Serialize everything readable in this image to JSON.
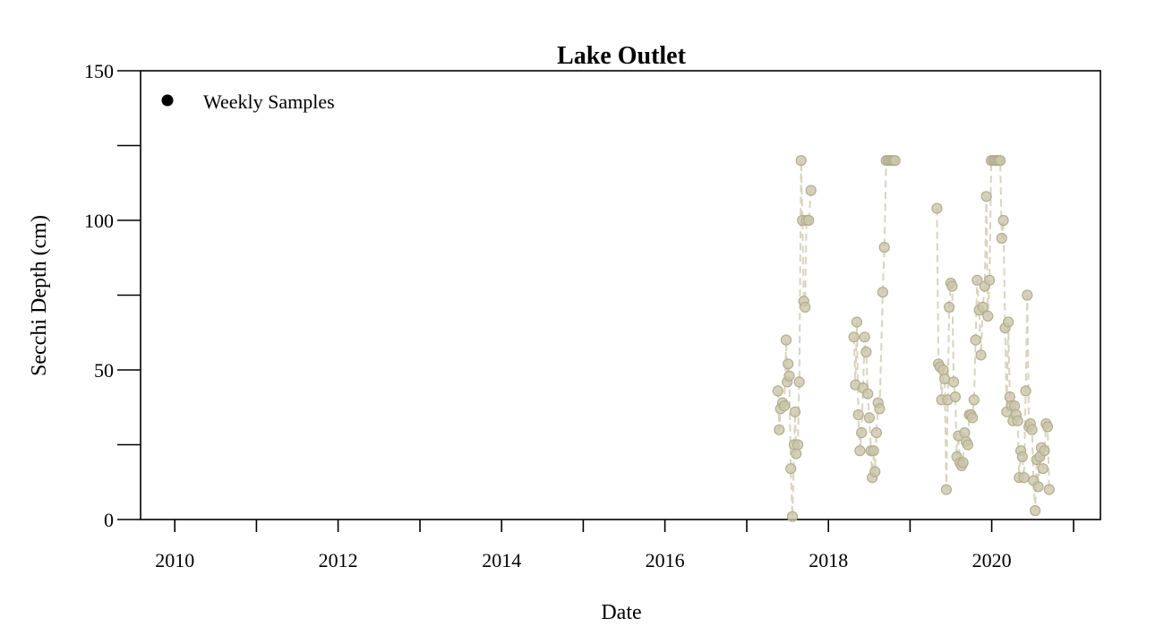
{
  "chart_data": {
    "type": "scatter",
    "title": "Lake Outlet",
    "xlabel": "Date",
    "ylabel": "Secchi Depth (cm)",
    "x_type": "date",
    "xlim": [
      "2009-08-01",
      "2021-05-01"
    ],
    "ylim": [
      0,
      150
    ],
    "x_ticks": [
      "2010",
      "2011",
      "2012",
      "2013",
      "2014",
      "2015",
      "2016",
      "2017",
      "2018",
      "2019",
      "2020",
      "2021"
    ],
    "x_tick_labels": [
      "2010",
      "",
      "2012",
      "",
      "2014",
      "",
      "2016",
      "",
      "2018",
      "",
      "2020",
      ""
    ],
    "y_ticks": [
      0,
      25,
      50,
      75,
      100,
      125,
      150
    ],
    "y_tick_labels": [
      "0",
      "",
      "50",
      "",
      "100",
      "",
      "150"
    ],
    "grid": false,
    "legend_position": "top-left",
    "legend_marker_color": "#000000",
    "point_color": "#cbc6aa",
    "point_stroke": "#b3ad8f",
    "line_color": "#cbc6aa",
    "series": [
      {
        "name": "Weekly Samples",
        "points": [
          [
            "2017-05-20",
            43
          ],
          [
            "2017-05-26",
            30
          ],
          [
            "2017-06-01",
            37
          ],
          [
            "2017-06-10",
            39
          ],
          [
            "2017-06-18",
            38
          ],
          [
            "2017-06-26",
            60
          ],
          [
            "2017-07-01",
            46
          ],
          [
            "2017-07-05",
            52
          ],
          [
            "2017-07-10",
            48
          ],
          [
            "2017-07-17",
            17
          ],
          [
            "2017-07-24",
            1
          ],
          [
            "2017-08-01",
            25
          ],
          [
            "2017-08-05",
            36
          ],
          [
            "2017-08-10",
            22
          ],
          [
            "2017-08-17",
            25
          ],
          [
            "2017-08-24",
            46
          ],
          [
            "2017-09-01",
            120
          ],
          [
            "2017-09-07",
            100
          ],
          [
            "2017-09-13",
            73
          ],
          [
            "2017-09-19",
            71
          ],
          [
            "2017-09-25",
            100
          ],
          [
            "2017-10-05",
            100
          ],
          [
            "2017-10-15",
            110
          ],
          [
            "2018-04-25",
            61
          ],
          [
            "2018-05-02",
            45
          ],
          [
            "2018-05-08",
            66
          ],
          [
            "2018-05-15",
            35
          ],
          [
            "2018-05-22",
            23
          ],
          [
            "2018-05-29",
            29
          ],
          [
            "2018-06-05",
            44
          ],
          [
            "2018-06-12",
            61
          ],
          [
            "2018-06-19",
            56
          ],
          [
            "2018-06-26",
            42
          ],
          [
            "2018-07-03",
            34
          ],
          [
            "2018-07-10",
            23
          ],
          [
            "2018-07-16",
            14
          ],
          [
            "2018-07-22",
            23
          ],
          [
            "2018-07-28",
            16
          ],
          [
            "2018-08-04",
            29
          ],
          [
            "2018-08-11",
            39
          ],
          [
            "2018-08-18",
            37
          ],
          [
            "2018-09-01",
            76
          ],
          [
            "2018-09-08",
            91
          ],
          [
            "2018-09-16",
            120
          ],
          [
            "2018-09-24",
            120
          ],
          [
            "2018-10-02",
            120
          ],
          [
            "2018-10-10",
            120
          ],
          [
            "2018-10-18",
            120
          ],
          [
            "2018-10-26",
            120
          ],
          [
            "2019-05-01",
            104
          ],
          [
            "2019-05-08",
            52
          ],
          [
            "2019-05-15",
            51
          ],
          [
            "2019-05-22",
            40
          ],
          [
            "2019-05-29",
            50
          ],
          [
            "2019-06-05",
            47
          ],
          [
            "2019-06-12",
            10
          ],
          [
            "2019-06-18",
            40
          ],
          [
            "2019-06-25",
            71
          ],
          [
            "2019-07-02",
            79
          ],
          [
            "2019-07-08",
            78
          ],
          [
            "2019-07-15",
            46
          ],
          [
            "2019-07-22",
            41
          ],
          [
            "2019-07-29",
            21
          ],
          [
            "2019-08-05",
            28
          ],
          [
            "2019-08-12",
            19
          ],
          [
            "2019-08-19",
            18
          ],
          [
            "2019-08-26",
            19
          ],
          [
            "2019-09-02",
            29
          ],
          [
            "2019-09-09",
            26
          ],
          [
            "2019-09-16",
            25
          ],
          [
            "2019-09-23",
            35
          ],
          [
            "2019-09-30",
            35
          ],
          [
            "2019-10-07",
            34
          ],
          [
            "2019-10-14",
            40
          ],
          [
            "2019-10-21",
            60
          ],
          [
            "2019-10-28",
            80
          ],
          [
            "2019-11-06",
            70
          ],
          [
            "2019-11-14",
            55
          ],
          [
            "2019-11-22",
            71
          ],
          [
            "2019-12-01",
            78
          ],
          [
            "2019-12-08",
            108
          ],
          [
            "2019-12-15",
            68
          ],
          [
            "2019-12-22",
            80
          ],
          [
            "2019-12-30",
            120
          ],
          [
            "2020-01-08",
            120
          ],
          [
            "2020-01-16",
            120
          ],
          [
            "2020-01-24",
            120
          ],
          [
            "2020-02-01",
            120
          ],
          [
            "2020-02-08",
            120
          ],
          [
            "2020-02-15",
            94
          ],
          [
            "2020-02-22",
            100
          ],
          [
            "2020-03-01",
            64
          ],
          [
            "2020-03-08",
            36
          ],
          [
            "2020-03-15",
            66
          ],
          [
            "2020-03-22",
            41
          ],
          [
            "2020-03-29",
            38
          ],
          [
            "2020-04-05",
            33
          ],
          [
            "2020-04-12",
            38
          ],
          [
            "2020-04-19",
            35
          ],
          [
            "2020-04-26",
            33
          ],
          [
            "2020-05-03",
            14
          ],
          [
            "2020-05-10",
            23
          ],
          [
            "2020-05-17",
            21
          ],
          [
            "2020-05-24",
            14
          ],
          [
            "2020-06-01",
            43
          ],
          [
            "2020-06-08",
            75
          ],
          [
            "2020-06-15",
            31
          ],
          [
            "2020-06-22",
            32
          ],
          [
            "2020-06-29",
            30
          ],
          [
            "2020-07-06",
            13
          ],
          [
            "2020-07-13",
            3
          ],
          [
            "2020-07-20",
            20
          ],
          [
            "2020-07-27",
            11
          ],
          [
            "2020-08-03",
            21
          ],
          [
            "2020-08-10",
            24
          ],
          [
            "2020-08-17",
            17
          ],
          [
            "2020-08-24",
            23
          ],
          [
            "2020-08-31",
            32
          ],
          [
            "2020-09-07",
            31
          ],
          [
            "2020-09-14",
            10
          ]
        ]
      }
    ]
  }
}
